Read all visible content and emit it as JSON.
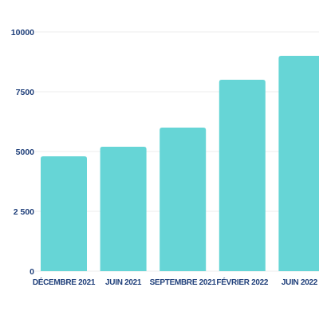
{
  "colors": {
    "bar": "#66d5d6",
    "label": "#1f3f7a",
    "grid": "#ececec"
  },
  "chart_data": {
    "type": "bar",
    "categories": [
      "DÉCEMBRE 2021",
      "JUIN 2021",
      "SEPTEMBRE 2021",
      "FÉVRIER 2022",
      "JUIN 2022"
    ],
    "values": [
      4800,
      5200,
      6000,
      8000,
      9000
    ],
    "yticks": [
      0,
      2500,
      5000,
      7500,
      10000
    ],
    "ytick_labels": [
      "0",
      "2 500",
      "5000",
      "7500",
      "10000"
    ],
    "ylim": [
      0,
      10000
    ],
    "grid": true,
    "title": "",
    "xlabel": "",
    "ylabel": ""
  }
}
